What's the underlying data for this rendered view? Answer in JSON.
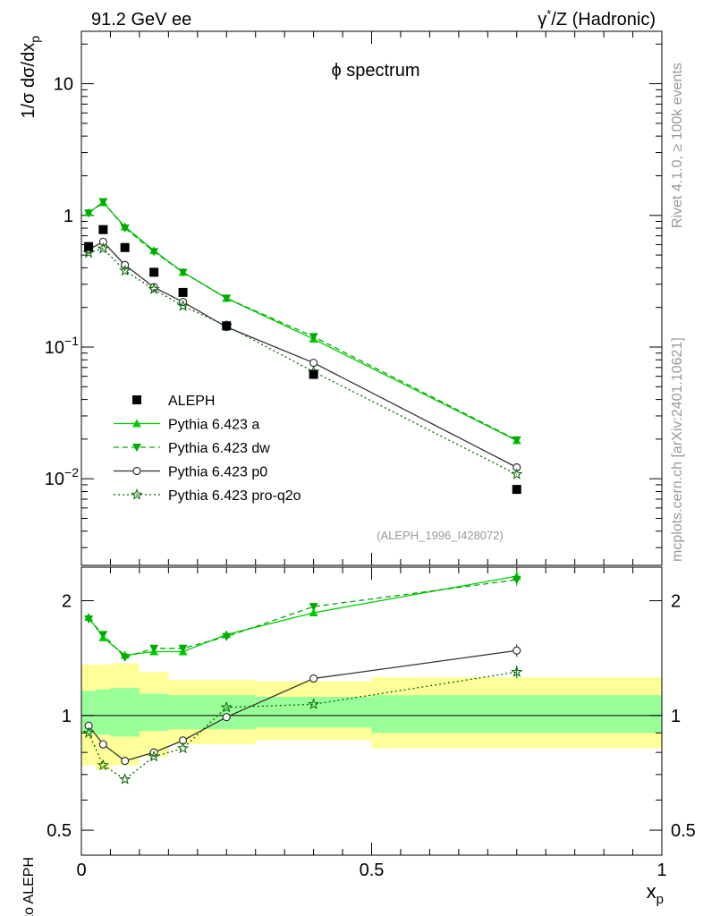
{
  "header": {
    "left": "91.2 GeV ee",
    "right_prefix": "γ",
    "right_sup": "*",
    "right_suffix": "/Z (Hadronic)"
  },
  "side_texts": {
    "rivet": "Rivet 4.1.0, ≥ 100k events",
    "mcplots": "mcplots.cern.ch [arXiv:2401.10621]"
  },
  "chart_data": [
    {
      "type": "line",
      "title": "ϕ spectrum",
      "ylabel_prefix": "1/σ  dσ/dx",
      "ylabel_sub": "p",
      "yscale": "log",
      "ylim": [
        0.0022,
        25
      ],
      "xlim": [
        0,
        1
      ],
      "watermark": "(ALEPH_1996_I428072)",
      "y_ticks": [
        {
          "value": 10,
          "base": "10",
          "exp": ""
        },
        {
          "value": 1,
          "base": "1",
          "exp": ""
        },
        {
          "value": 0.1,
          "base": "10",
          "exp": "−1"
        },
        {
          "value": 0.01,
          "base": "10",
          "exp": "−2"
        }
      ],
      "x": [
        0.0125,
        0.0375,
        0.075,
        0.125,
        0.175,
        0.25,
        0.4,
        0.75
      ],
      "reference": {
        "name": "ALEPH",
        "color": "#000000",
        "values": [
          0.58,
          0.78,
          0.57,
          0.37,
          0.26,
          0.145,
          0.062,
          0.0083
        ]
      },
      "series": [
        {
          "name": "Pythia 6.423 a",
          "color": "#00cc00",
          "dash": "",
          "marker": "triangle-up",
          "values": [
            1.05,
            1.25,
            0.82,
            0.54,
            0.37,
            0.235,
            0.115,
            0.0195
          ]
        },
        {
          "name": "Pythia 6.423 dw",
          "color": "#00aa00",
          "dash": "6,4",
          "marker": "triangle-down",
          "values": [
            1.04,
            1.27,
            0.8,
            0.53,
            0.37,
            0.235,
            0.12,
            0.0197
          ]
        },
        {
          "name": "Pythia 6.423 p0",
          "color": "#333333",
          "dash": "",
          "marker": "circle",
          "values": [
            0.55,
            0.63,
            0.42,
            0.285,
            0.22,
            0.142,
            0.076,
            0.0122
          ]
        },
        {
          "name": "Pythia 6.423 pro-q2o",
          "color": "#006600",
          "dash": "2,3",
          "marker": "star",
          "values": [
            0.52,
            0.56,
            0.38,
            0.275,
            0.205,
            0.145,
            0.065,
            0.0108
          ]
        }
      ]
    },
    {
      "type": "line",
      "ylabel": "Ratio to ALEPH",
      "xlabel": "x",
      "xlabel_sub": "p",
      "yscale": "log",
      "ylim": [
        0.43,
        2.45
      ],
      "xlim": [
        0,
        1
      ],
      "x_ticks": [
        {
          "value": 0,
          "label": "0"
        },
        {
          "value": 0.5,
          "label": "0.5"
        },
        {
          "value": 1,
          "label": "1"
        }
      ],
      "y_ticks": [
        {
          "value": 2,
          "label": "2"
        },
        {
          "value": 1,
          "label": "1"
        },
        {
          "value": 0.5,
          "label": "0.5"
        }
      ],
      "bands": [
        {
          "x0": 0,
          "x1": 0.025,
          "inner": [
            0.9,
            1.16
          ],
          "outer": [
            0.74,
            1.36
          ]
        },
        {
          "x0": 0.025,
          "x1": 0.05,
          "inner": [
            0.89,
            1.17
          ],
          "outer": [
            0.72,
            1.36
          ]
        },
        {
          "x0": 0.05,
          "x1": 0.1,
          "inner": [
            0.88,
            1.18
          ],
          "outer": [
            0.74,
            1.37
          ]
        },
        {
          "x0": 0.1,
          "x1": 0.15,
          "inner": [
            0.91,
            1.14
          ],
          "outer": [
            0.78,
            1.3
          ]
        },
        {
          "x0": 0.15,
          "x1": 0.2,
          "inner": [
            0.92,
            1.13
          ],
          "outer": [
            0.84,
            1.24
          ]
        },
        {
          "x0": 0.2,
          "x1": 0.3,
          "inner": [
            0.92,
            1.13
          ],
          "outer": [
            0.84,
            1.24
          ]
        },
        {
          "x0": 0.3,
          "x1": 0.5,
          "inner": [
            0.93,
            1.12
          ],
          "outer": [
            0.86,
            1.23
          ]
        },
        {
          "x0": 0.5,
          "x1": 1.0,
          "inner": [
            0.9,
            1.13
          ],
          "outer": [
            0.82,
            1.26
          ]
        }
      ],
      "x": [
        0.0125,
        0.0375,
        0.075,
        0.125,
        0.175,
        0.25,
        0.4,
        0.75
      ],
      "series": [
        {
          "name": "Pythia 6.423 a",
          "color": "#00cc00",
          "dash": "",
          "marker": "triangle-up",
          "values": [
            1.81,
            1.6,
            1.44,
            1.47,
            1.47,
            1.63,
            1.86,
            2.32
          ]
        },
        {
          "name": "Pythia 6.423 dw",
          "color": "#00aa00",
          "dash": "6,4",
          "marker": "triangle-down",
          "values": [
            1.79,
            1.63,
            1.42,
            1.5,
            1.5,
            1.61,
            1.93,
            2.27
          ]
        },
        {
          "name": "Pythia 6.423 p0",
          "color": "#333333",
          "dash": "",
          "marker": "circle",
          "values": [
            0.94,
            0.84,
            0.76,
            0.8,
            0.86,
            0.99,
            1.25,
            1.48
          ]
        },
        {
          "name": "Pythia 6.423 pro-q2o",
          "color": "#006600",
          "dash": "2,3",
          "marker": "star",
          "values": [
            0.9,
            0.74,
            0.68,
            0.78,
            0.82,
            1.05,
            1.07,
            1.3
          ]
        }
      ]
    }
  ]
}
